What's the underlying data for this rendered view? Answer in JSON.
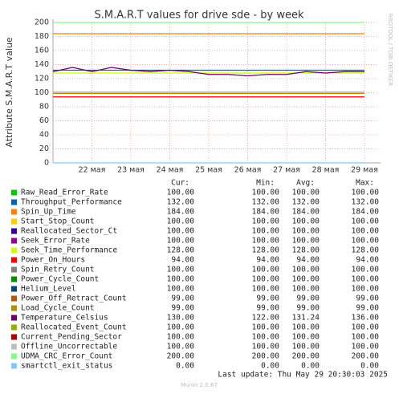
{
  "chart_data": {
    "type": "line",
    "title": "S.M.A.R.T values for drive sde - by week",
    "y_label": "Attribute S.M.A.R.T value",
    "side_text": "RRDTOOL / TOBI OETIKER",
    "x": [
      21,
      21.5,
      22,
      22.5,
      23,
      23.5,
      24,
      24.5,
      25,
      25.5,
      26,
      26.5,
      27,
      27.5,
      28,
      28.5,
      29
    ],
    "xlim": [
      21,
      29.33
    ],
    "xticks": [
      {
        "value": 22,
        "label": "22 мая"
      },
      {
        "value": 23,
        "label": "23 мая"
      },
      {
        "value": 24,
        "label": "24 мая"
      },
      {
        "value": 25,
        "label": "25 мая"
      },
      {
        "value": 26,
        "label": "26 мая"
      },
      {
        "value": 27,
        "label": "27 мая"
      },
      {
        "value": 28,
        "label": "28 мая"
      },
      {
        "value": 29,
        "label": "29 мая"
      }
    ],
    "ylim": [
      0,
      200
    ],
    "yticks": [
      0,
      20,
      40,
      60,
      80,
      100,
      120,
      140,
      160,
      180,
      200
    ],
    "grid": true,
    "columns": [
      "Cur:",
      "Min:",
      "Avg:",
      "Max:"
    ],
    "series": [
      {
        "name": "Raw_Read_Error_Rate",
        "color": "#00cc00",
        "values": [
          100,
          100,
          100,
          100,
          100,
          100,
          100,
          100,
          100,
          100,
          100,
          100,
          100,
          100,
          100,
          100,
          100
        ],
        "stats": [
          "100.00",
          "100.00",
          "100.00",
          "100.00"
        ]
      },
      {
        "name": "Throughput_Performance",
        "color": "#0066b3",
        "values": [
          132,
          132,
          132,
          132,
          132,
          132,
          132,
          132,
          132,
          132,
          132,
          132,
          132,
          132,
          132,
          132,
          132
        ],
        "stats": [
          "132.00",
          "132.00",
          "132.00",
          "132.00"
        ]
      },
      {
        "name": "Spin_Up_Time",
        "color": "#ff8000",
        "values": [
          184,
          184,
          184,
          184,
          184,
          184,
          184,
          184,
          184,
          184,
          184,
          184,
          184,
          184,
          184,
          184,
          184
        ],
        "stats": [
          "184.00",
          "184.00",
          "184.00",
          "184.00"
        ]
      },
      {
        "name": "Start_Stop_Count",
        "color": "#ffcc00",
        "values": [
          100,
          100,
          100,
          100,
          100,
          100,
          100,
          100,
          100,
          100,
          100,
          100,
          100,
          100,
          100,
          100,
          100
        ],
        "stats": [
          "100.00",
          "100.00",
          "100.00",
          "100.00"
        ]
      },
      {
        "name": "Reallocated_Sector_Ct",
        "color": "#330099",
        "values": [
          100,
          100,
          100,
          100,
          100,
          100,
          100,
          100,
          100,
          100,
          100,
          100,
          100,
          100,
          100,
          100,
          100
        ],
        "stats": [
          "100.00",
          "100.00",
          "100.00",
          "100.00"
        ]
      },
      {
        "name": "Seek_Error_Rate",
        "color": "#990099",
        "values": [
          100,
          100,
          100,
          100,
          100,
          100,
          100,
          100,
          100,
          100,
          100,
          100,
          100,
          100,
          100,
          100,
          100
        ],
        "stats": [
          "100.00",
          "100.00",
          "100.00",
          "100.00"
        ]
      },
      {
        "name": "Seek_Time_Performance",
        "color": "#ccff00",
        "values": [
          128,
          128,
          128,
          128,
          128,
          128,
          128,
          128,
          128,
          128,
          128,
          128,
          128,
          128,
          128,
          128,
          128
        ],
        "stats": [
          "128.00",
          "128.00",
          "128.00",
          "128.00"
        ]
      },
      {
        "name": "Power_On_Hours",
        "color": "#ff0000",
        "values": [
          94,
          94,
          94,
          94,
          94,
          94,
          94,
          94,
          94,
          94,
          94,
          94,
          94,
          94,
          94,
          94,
          94
        ],
        "stats": [
          "94.00",
          "94.00",
          "94.00",
          "94.00"
        ]
      },
      {
        "name": "Spin_Retry_Count",
        "color": "#808080",
        "values": [
          100,
          100,
          100,
          100,
          100,
          100,
          100,
          100,
          100,
          100,
          100,
          100,
          100,
          100,
          100,
          100,
          100
        ],
        "stats": [
          "100.00",
          "100.00",
          "100.00",
          "100.00"
        ]
      },
      {
        "name": "Power_Cycle_Count",
        "color": "#008f00",
        "values": [
          100,
          100,
          100,
          100,
          100,
          100,
          100,
          100,
          100,
          100,
          100,
          100,
          100,
          100,
          100,
          100,
          100
        ],
        "stats": [
          "100.00",
          "100.00",
          "100.00",
          "100.00"
        ]
      },
      {
        "name": "Helium_Level",
        "color": "#00487d",
        "values": [
          100,
          100,
          100,
          100,
          100,
          100,
          100,
          100,
          100,
          100,
          100,
          100,
          100,
          100,
          100,
          100,
          100
        ],
        "stats": [
          "100.00",
          "100.00",
          "100.00",
          "100.00"
        ]
      },
      {
        "name": "Power_Off_Retract_Count",
        "color": "#b35a00",
        "values": [
          99,
          99,
          99,
          99,
          99,
          99,
          99,
          99,
          99,
          99,
          99,
          99,
          99,
          99,
          99,
          99,
          99
        ],
        "stats": [
          "99.00",
          "99.00",
          "99.00",
          "99.00"
        ]
      },
      {
        "name": "Load_Cycle_Count",
        "color": "#b38f00",
        "values": [
          99,
          99,
          99,
          99,
          99,
          99,
          99,
          99,
          99,
          99,
          99,
          99,
          99,
          99,
          99,
          99,
          99
        ],
        "stats": [
          "99.00",
          "99.00",
          "99.00",
          "99.00"
        ]
      },
      {
        "name": "Temperature_Celsius",
        "color": "#6b006b",
        "values": [
          130,
          136,
          130,
          136,
          132,
          130,
          132,
          130,
          126,
          126,
          124,
          126,
          126,
          130,
          128,
          130,
          130
        ],
        "stats": [
          "130.00",
          "122.00",
          "131.24",
          "136.00"
        ]
      },
      {
        "name": "Reallocated_Event_Count",
        "color": "#8fb300",
        "values": [
          100,
          100,
          100,
          100,
          100,
          100,
          100,
          100,
          100,
          100,
          100,
          100,
          100,
          100,
          100,
          100,
          100
        ],
        "stats": [
          "100.00",
          "100.00",
          "100.00",
          "100.00"
        ]
      },
      {
        "name": "Current_Pending_Sector",
        "color": "#b30000",
        "values": [
          100,
          100,
          100,
          100,
          100,
          100,
          100,
          100,
          100,
          100,
          100,
          100,
          100,
          100,
          100,
          100,
          100
        ],
        "stats": [
          "100.00",
          "100.00",
          "100.00",
          "100.00"
        ]
      },
      {
        "name": "Offline_Uncorrectable",
        "color": "#bebebe",
        "values": [
          100,
          100,
          100,
          100,
          100,
          100,
          100,
          100,
          100,
          100,
          100,
          100,
          100,
          100,
          100,
          100,
          100
        ],
        "stats": [
          "100.00",
          "100.00",
          "100.00",
          "100.00"
        ]
      },
      {
        "name": "UDMA_CRC_Error_Count",
        "color": "#80ff80",
        "values": [
          200,
          200,
          200,
          200,
          200,
          200,
          200,
          200,
          200,
          200,
          200,
          200,
          200,
          200,
          200,
          200,
          200
        ],
        "stats": [
          "200.00",
          "200.00",
          "200.00",
          "200.00"
        ]
      },
      {
        "name": "smartctl_exit_status",
        "color": "#80c9ff",
        "values": [
          0,
          0,
          0,
          0,
          0,
          0,
          0,
          0,
          0,
          0,
          0,
          0,
          0,
          0,
          0,
          0,
          0
        ],
        "stats": [
          "0.00",
          "0.00",
          "0.00",
          "0.00"
        ]
      }
    ],
    "last_update": "Last update: Thu May 29 20:30:03 2025",
    "footer": "Munin 2.0.67"
  }
}
